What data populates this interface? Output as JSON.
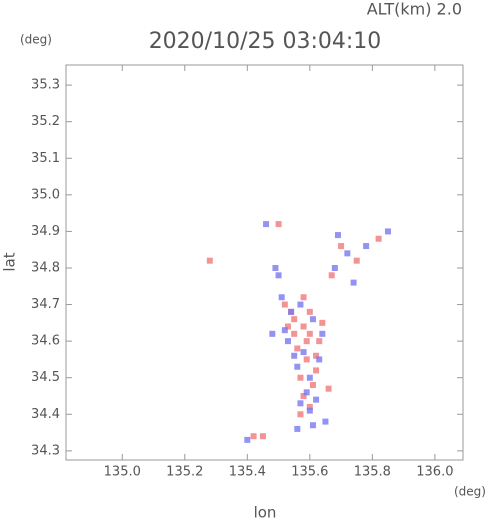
{
  "chart_data": {
    "type": "scatter",
    "title": "2020/10/25 03:04:10",
    "subtitle": "ALT(km) 2.0",
    "ylabel": "lat",
    "yunit": "(deg)",
    "xlabel": "lon",
    "xunit": "(deg)",
    "xlim": [
      134.82,
      136.09
    ],
    "ylim": [
      34.275,
      35.355
    ],
    "xticks": [
      {
        "value": 135.0,
        "label": "135.0"
      },
      135.2,
      135.4,
      135.6,
      135.8,
      {
        "value": 136.0,
        "label": "136.0"
      }
    ],
    "yticks": [
      34.3,
      34.4,
      34.5,
      34.6,
      34.7,
      34.8,
      34.9,
      {
        "value": 35.0,
        "label": "35.0"
      },
      35.1,
      35.2,
      35.3
    ],
    "series": [
      {
        "color": "#f07878",
        "x": [
          135.52,
          135.55,
          135.58,
          135.6,
          135.63,
          135.56,
          135.59,
          135.62,
          135.54,
          135.57,
          135.61,
          135.64,
          135.58,
          135.6,
          135.55,
          135.62,
          135.59,
          135.57,
          135.66,
          135.53,
          135.6,
          135.42,
          135.45,
          135.28,
          135.7,
          135.75,
          135.82,
          135.5,
          135.67,
          135.58
        ],
        "values": [
          34.7,
          34.66,
          34.64,
          34.62,
          34.6,
          34.58,
          34.55,
          34.52,
          34.68,
          34.5,
          34.48,
          34.65,
          34.45,
          34.42,
          34.62,
          34.56,
          34.6,
          34.4,
          34.47,
          34.64,
          34.68,
          34.34,
          34.34,
          34.82,
          34.86,
          34.82,
          34.88,
          34.92,
          34.78,
          34.72
        ]
      },
      {
        "color": "#7878f0",
        "x": [
          135.51,
          135.54,
          135.57,
          135.61,
          135.64,
          135.53,
          135.58,
          135.63,
          135.56,
          135.6,
          135.59,
          135.55,
          135.62,
          135.52,
          135.57,
          135.6,
          135.48,
          135.72,
          135.78,
          135.85,
          135.68,
          135.74,
          135.49,
          135.46,
          135.4,
          135.56,
          135.65,
          135.61,
          135.5,
          135.69
        ],
        "values": [
          34.72,
          34.68,
          34.7,
          34.66,
          34.62,
          34.6,
          34.57,
          34.55,
          34.53,
          34.5,
          34.46,
          34.56,
          34.44,
          34.63,
          34.43,
          34.41,
          34.62,
          34.84,
          34.86,
          34.9,
          34.8,
          34.76,
          34.8,
          34.92,
          34.33,
          34.36,
          34.38,
          34.37,
          34.78,
          34.89
        ]
      }
    ]
  }
}
